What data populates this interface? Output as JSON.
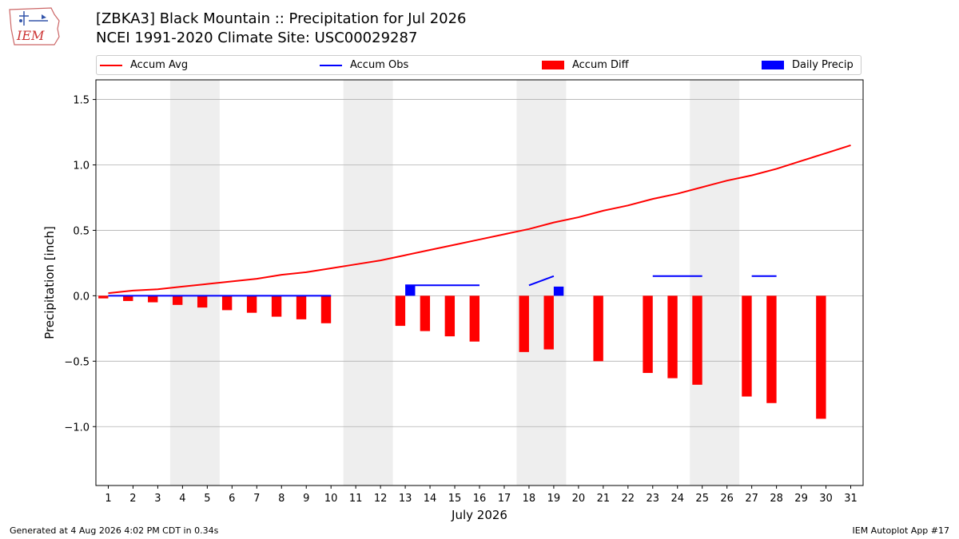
{
  "header": {
    "logo_text": "IEM",
    "title_line1": "[ZBKA3] Black Mountain :: Precipitation for Jul 2026",
    "title_line2": "NCEI 1991-2020 Climate Site: USC00029287"
  },
  "legend": {
    "placement": "top",
    "items": [
      {
        "label": "Accum Avg",
        "kind": "line",
        "color": "#ff0000"
      },
      {
        "label": "Accum Obs",
        "kind": "line",
        "color": "#0000ff"
      },
      {
        "label": "Accum Diff",
        "kind": "bar",
        "color": "#ff0000"
      },
      {
        "label": "Daily Precip",
        "kind": "bar",
        "color": "#0000ff"
      }
    ]
  },
  "chart_data": {
    "type": "bar",
    "xlabel": "July 2026",
    "ylabel": "Precipitation [inch]",
    "xlim": [
      0.5,
      31.5
    ],
    "ylim": [
      -1.45,
      1.65
    ],
    "yticks": [
      -1.0,
      -0.5,
      0.0,
      0.5,
      1.0,
      1.5
    ],
    "ytick_labels": [
      "−1.0",
      "−0.5",
      "0.0",
      "0.5",
      "1.0",
      "1.5"
    ],
    "days": [
      1,
      2,
      3,
      4,
      5,
      6,
      7,
      8,
      9,
      10,
      11,
      12,
      13,
      14,
      15,
      16,
      17,
      18,
      19,
      20,
      21,
      22,
      23,
      24,
      25,
      26,
      27,
      28,
      29,
      30,
      31
    ],
    "grid": "horizontal",
    "weekend_shading": [
      [
        3.5,
        5.5
      ],
      [
        10.5,
        12.5
      ],
      [
        17.5,
        19.5
      ],
      [
        24.5,
        26.5
      ]
    ],
    "shading_color": "#eeeeee",
    "series": [
      {
        "name": "Accum Avg",
        "kind": "line",
        "color": "#ff0000",
        "values": [
          0.02,
          0.04,
          0.05,
          0.07,
          0.09,
          0.11,
          0.13,
          0.16,
          0.18,
          0.21,
          0.24,
          0.27,
          0.31,
          0.35,
          0.39,
          0.43,
          0.47,
          0.51,
          0.56,
          0.6,
          0.65,
          0.69,
          0.74,
          0.78,
          0.83,
          0.88,
          0.92,
          0.97,
          1.03,
          1.09,
          1.15
        ]
      },
      {
        "name": "Accum Obs",
        "kind": "line",
        "color": "#0000ff",
        "values": [
          0.0,
          0.0,
          0.0,
          0.0,
          0.0,
          0.0,
          0.0,
          0.0,
          0.0,
          0.0,
          null,
          null,
          0.08,
          0.08,
          0.08,
          0.08,
          null,
          0.08,
          0.15,
          null,
          null,
          null,
          0.15,
          0.15,
          0.15,
          null,
          0.15,
          0.15,
          null,
          null,
          null
        ]
      },
      {
        "name": "Accum Diff",
        "kind": "bar",
        "color": "#ff0000",
        "values": [
          -0.02,
          -0.04,
          -0.05,
          -0.07,
          -0.09,
          -0.11,
          -0.13,
          -0.16,
          -0.18,
          -0.21,
          null,
          null,
          -0.23,
          -0.27,
          -0.31,
          -0.35,
          null,
          -0.43,
          -0.41,
          null,
          -0.5,
          null,
          -0.59,
          -0.63,
          -0.68,
          null,
          -0.77,
          -0.82,
          null,
          -0.94,
          null
        ]
      },
      {
        "name": "Daily Precip",
        "kind": "bar",
        "color": "#0000ff",
        "values": [
          0,
          0,
          0,
          0,
          0,
          0,
          0,
          0,
          0,
          0,
          null,
          null,
          0.08,
          0,
          0,
          0,
          null,
          0,
          0.07,
          null,
          null,
          null,
          0,
          0,
          0,
          null,
          0,
          0,
          null,
          null,
          null
        ]
      }
    ]
  },
  "footer": {
    "left": "Generated at 4 Aug 2026 4:02 PM CDT in 0.34s",
    "right": "IEM Autoplot App #17"
  }
}
